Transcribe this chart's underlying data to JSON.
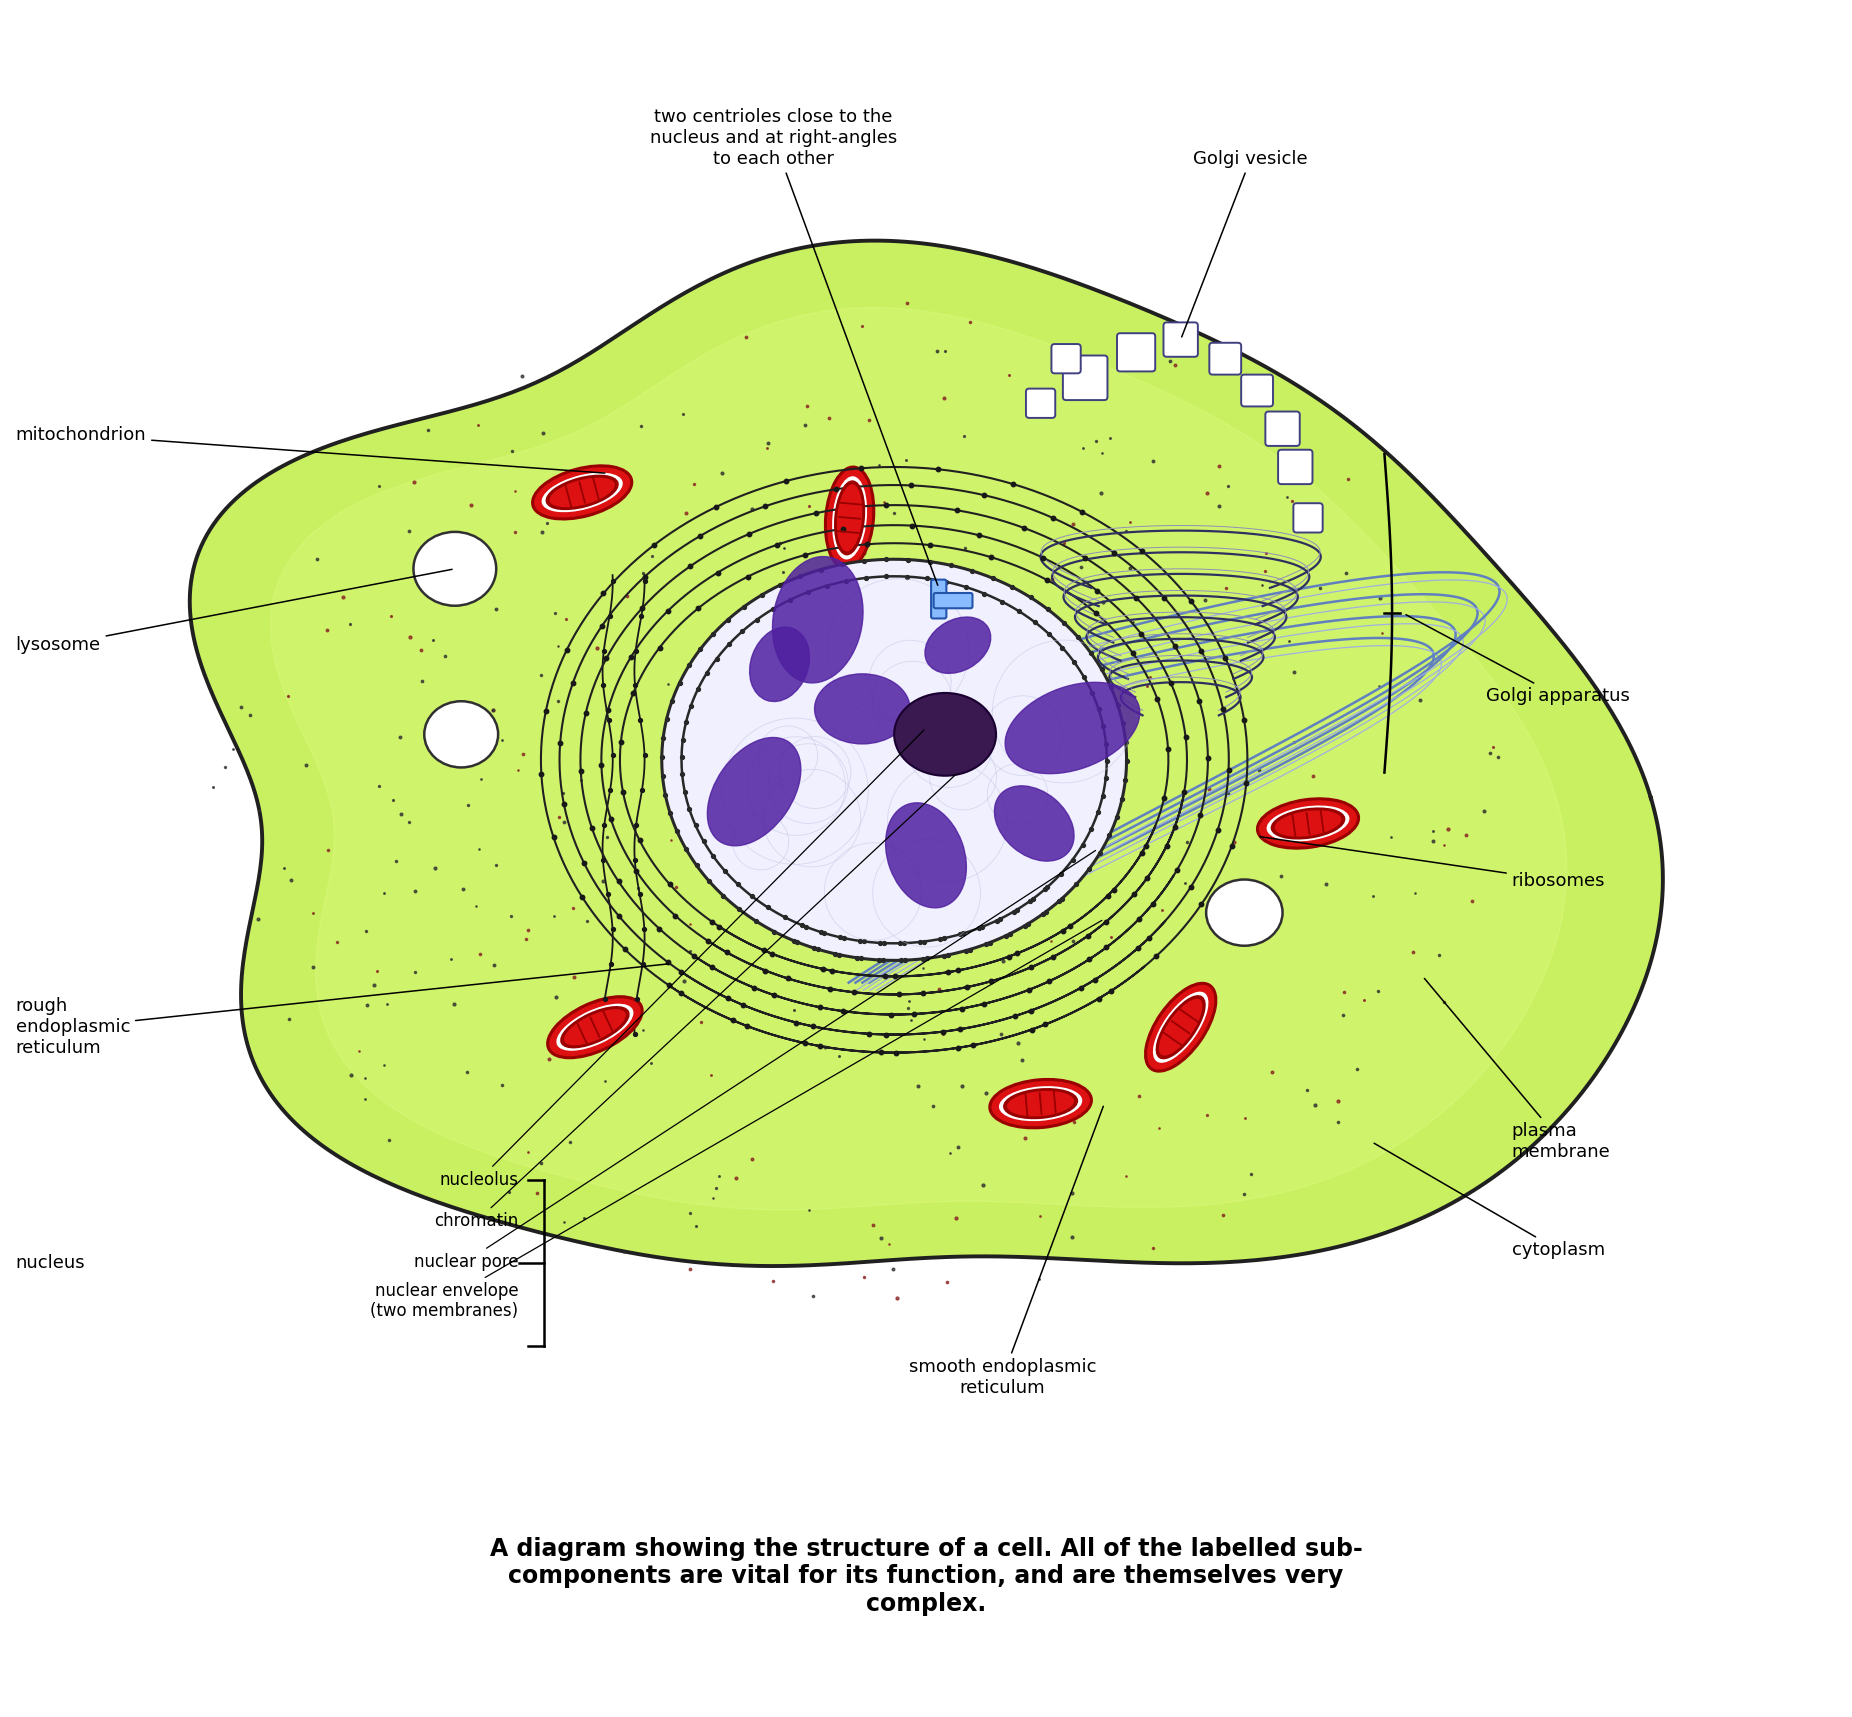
{
  "cell_color": "#c8f060",
  "cell_color2": "#d8f878",
  "cell_edge_color": "#202020",
  "nucleus_fill": "#f0f0ff",
  "nucleus_purple_fill": "#c8a8e0",
  "nucleolus_color": "#3a1850",
  "chromatin_color": "#5020a0",
  "background_color": "#ffffff",
  "mito_fill": "#dd1111",
  "mito_edge": "#990000",
  "mito_inner": "#ff8888",
  "golgi_color": "#303060",
  "golgi_light": "#9090b8",
  "vesicle_edge": "#404080",
  "er_color": "#202020",
  "smooth_er_color": "#6080c0",
  "smooth_er_light": "#a0b0e0",
  "centriole_color": "#4488cc",
  "lyso_fill": "#ffffff",
  "dot_dark": "#303030",
  "dot_red": "#882222",
  "caption_line1": "A diagram showing the structure of a cell. All of the labelled sub-",
  "caption_line2": "components are vital for its function, and are themselves very",
  "caption_line3": "complex.",
  "figsize": [
    18.52,
    17.17
  ],
  "dpi": 100
}
